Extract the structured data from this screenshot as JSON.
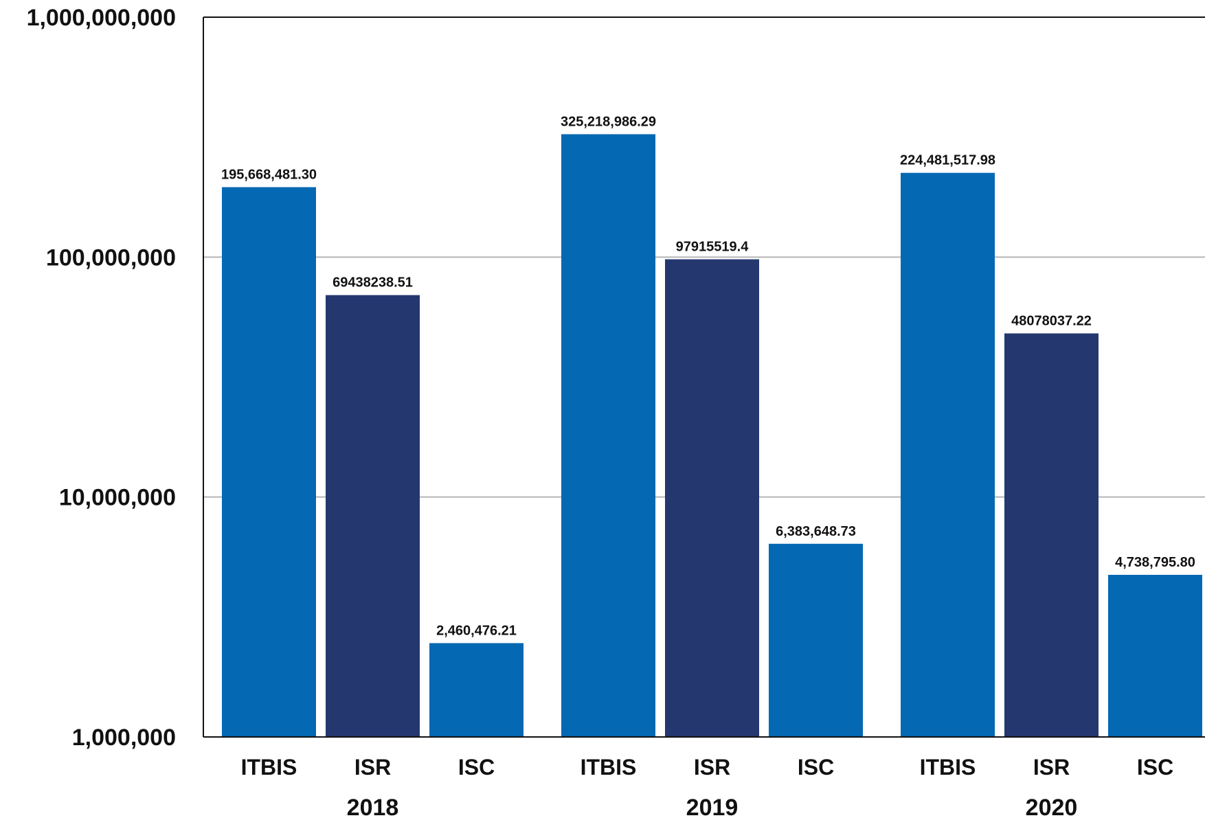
{
  "chart_data": {
    "type": "bar",
    "y_scale": "log",
    "ylim": [
      1000000,
      1000000000
    ],
    "y_ticks": [
      {
        "value": 1000000,
        "label": "1,000,000"
      },
      {
        "value": 10000000,
        "label": "10,000,000"
      },
      {
        "value": 100000000,
        "label": "100,000,000"
      },
      {
        "value": 1000000000,
        "label": "1,000,000,000"
      }
    ],
    "grid": true,
    "legend": "none",
    "colors": {
      "ITBIS": "#0468b3",
      "ISR": "#24386f",
      "ISC": "#0468b3"
    },
    "groups": [
      {
        "label": "2018",
        "bars": [
          {
            "category": "ITBIS",
            "value": 195668481.3,
            "label": "195,668,481.30"
          },
          {
            "category": "ISR",
            "value": 69438238.51,
            "label": "69438238.51"
          },
          {
            "category": "ISC",
            "value": 2460476.21,
            "label": "2,460,476.21"
          }
        ]
      },
      {
        "label": "2019",
        "bars": [
          {
            "category": "ITBIS",
            "value": 325218986.29,
            "label": "325,218,986.29"
          },
          {
            "category": "ISR",
            "value": 97915519.4,
            "label": "97915519.4"
          },
          {
            "category": "ISC",
            "value": 6383648.73,
            "label": "6,383,648.73"
          }
        ]
      },
      {
        "label": "2020",
        "bars": [
          {
            "category": "ITBIS",
            "value": 224481517.98,
            "label": "224,481,517.98"
          },
          {
            "category": "ISR",
            "value": 48078037.22,
            "label": "48078037.22"
          },
          {
            "category": "ISC",
            "value": 4738795.8,
            "label": "4,738,795.80"
          }
        ]
      }
    ]
  }
}
